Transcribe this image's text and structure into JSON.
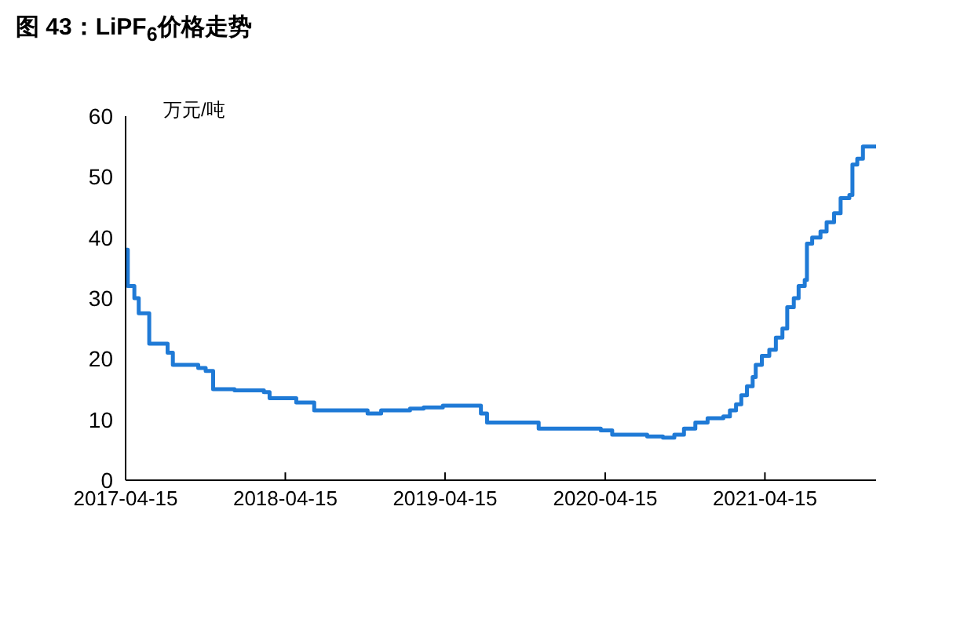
{
  "chart_data": {
    "type": "step",
    "title": "图 43：LiPF$_{6}$价格走势",
    "ylabel": "万元/吨",
    "x": [
      "2017-04-15",
      "2017-04-20",
      "2017-05-05",
      "2017-05-15",
      "2017-06-08",
      "2017-07-20",
      "2017-08-01",
      "2017-09-28",
      "2017-10-15",
      "2017-11-01",
      "2017-12-20",
      "2018-02-25",
      "2018-03-10",
      "2018-05-10",
      "2018-06-20",
      "2018-10-20",
      "2018-11-20",
      "2019-01-25",
      "2019-02-25",
      "2019-04-10",
      "2019-07-06",
      "2019-07-20",
      "2019-11-15",
      "2020-04-05",
      "2020-05-01",
      "2020-07-20",
      "2020-08-25",
      "2020-09-20",
      "2020-10-12",
      "2020-11-07",
      "2020-12-05",
      "2021-01-10",
      "2021-01-25",
      "2021-02-08",
      "2021-02-20",
      "2021-03-05",
      "2021-03-18",
      "2021-03-25",
      "2021-04-08",
      "2021-04-25",
      "2021-05-10",
      "2021-05-25",
      "2021-06-05",
      "2021-06-20",
      "2021-07-01",
      "2021-07-15",
      "2021-07-20",
      "2021-08-01",
      "2021-08-20",
      "2021-09-03",
      "2021-09-20",
      "2021-10-05",
      "2021-10-25",
      "2021-11-01",
      "2021-11-12",
      "2021-11-25",
      "2021-12-25"
    ],
    "series": [
      {
        "color": "#1f7ad6",
        "values": [
          38,
          32,
          30,
          27.5,
          22.5,
          21,
          19,
          18.5,
          18,
          15,
          14.8,
          14.5,
          13.5,
          12.8,
          11.5,
          11,
          11.5,
          11.8,
          12,
          12.3,
          11,
          9.5,
          8.5,
          8.2,
          7.5,
          7.2,
          7,
          7.5,
          8.5,
          9.5,
          10.2,
          10.5,
          11.5,
          12.5,
          14,
          15.5,
          17,
          19,
          20.5,
          21.5,
          23.5,
          25,
          28.5,
          30,
          32,
          33,
          39,
          40,
          41,
          42.5,
          44,
          46.5,
          47,
          52,
          53,
          55,
          55
        ]
      }
    ],
    "xlim": [
      "2017-04-15",
      "2021-12-25"
    ],
    "xticks": [
      "2017-04-15",
      "2018-04-15",
      "2019-04-15",
      "2020-04-15",
      "2021-04-15"
    ],
    "ylim": [
      0,
      60
    ],
    "yticks": [
      0,
      10,
      20,
      30,
      40,
      50,
      60
    ],
    "grid": false,
    "legend": false
  }
}
